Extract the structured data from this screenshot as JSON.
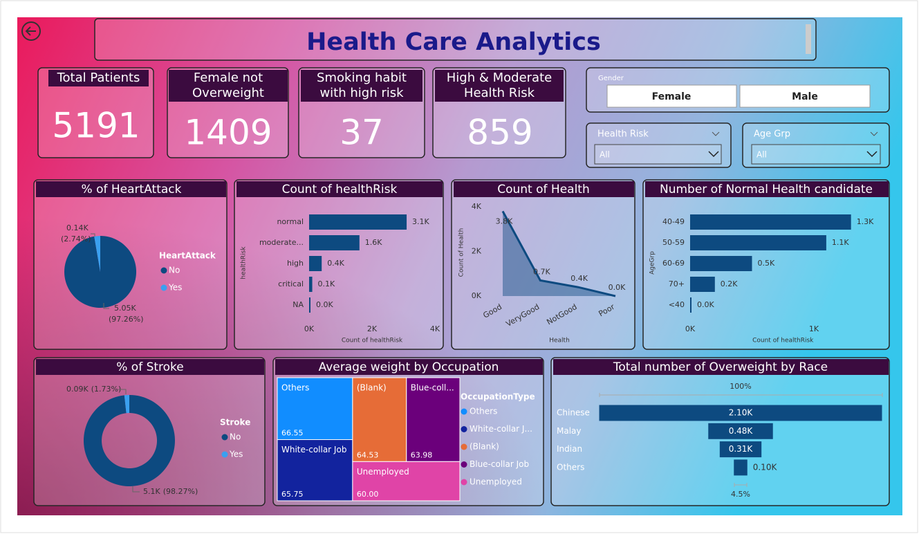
{
  "header": {
    "title": "Health Care Analytics"
  },
  "kpis": [
    {
      "label": "Total Patients",
      "value": 5191
    },
    {
      "label": "Female not Overweight",
      "value": 1409
    },
    {
      "label": "Smoking habit with high risk",
      "value": 37
    },
    {
      "label": "High & Moderate Health Risk",
      "value": 859
    }
  ],
  "slicers": {
    "gender": {
      "title": "Gender",
      "options": [
        "Female",
        "Male"
      ]
    },
    "health_risk": {
      "title": "Health Risk",
      "value": "All"
    },
    "age_grp": {
      "title": "Age Grp",
      "value": "All"
    }
  },
  "chart_data": [
    {
      "type": "pie",
      "title": "% of HeartAttack",
      "legend_title": "HeartAttack",
      "categories": [
        "No",
        "Yes"
      ],
      "values": [
        5050,
        140
      ],
      "value_labels": [
        "5.05K",
        "0.14K"
      ],
      "share_labels": [
        "(97.26%)",
        "(2.74%)"
      ],
      "colors": [
        "#0d4a80",
        "#3aa0f0"
      ]
    },
    {
      "type": "bar",
      "orientation": "horizontal",
      "title": "Count of healthRisk",
      "categories": [
        "normal",
        "moderate...",
        "high",
        "critical",
        "NA"
      ],
      "values": [
        3100,
        1600,
        400,
        100,
        0
      ],
      "value_labels": [
        "3.1K",
        "1.6K",
        "0.4K",
        "0.1K",
        "0.0K"
      ],
      "xlim": [
        0,
        4000
      ],
      "xticks": [
        {
          "value": 0,
          "label": "0K"
        },
        {
          "value": 2000,
          "label": "2K"
        },
        {
          "value": 4000,
          "label": "4K"
        }
      ],
      "x_label": "Count of healthRisk",
      "y_label": "healthRisk",
      "color": "#0d4a80"
    },
    {
      "type": "area",
      "title": "Count of Health",
      "categories": [
        "Good",
        "VeryGood",
        "NotGood",
        "Poor"
      ],
      "values": [
        3800,
        700,
        400,
        0
      ],
      "value_labels": [
        "3.8K",
        "0.7K",
        "0.4K",
        "0.0K"
      ],
      "ylim": [
        0,
        4000
      ],
      "yticks": [
        {
          "value": 0,
          "label": "0K"
        },
        {
          "value": 2000,
          "label": "2K"
        },
        {
          "value": 4000,
          "label": "4K"
        }
      ],
      "x_label": "Health",
      "y_label": "Count of Health",
      "color": "#0d4a80"
    },
    {
      "type": "bar",
      "orientation": "horizontal",
      "title": "Number of Normal Health candidate",
      "categories": [
        "40-49",
        "50-59",
        "60-69",
        "70+",
        "<40"
      ],
      "values": [
        1300,
        1100,
        500,
        200,
        0
      ],
      "value_labels": [
        "1.3K",
        "1.1K",
        "0.5K",
        "0.2K",
        "0.0K"
      ],
      "xlim": [
        0,
        1500
      ],
      "xticks": [
        {
          "value": 0,
          "label": "0K"
        },
        {
          "value": 1000,
          "label": "1K"
        }
      ],
      "x_label": "Count of healthRisk",
      "y_label": "AgeGrp",
      "color": "#0d4a80"
    },
    {
      "type": "donut",
      "title": "% of Stroke",
      "legend_title": "Stroke",
      "categories": [
        "No",
        "Yes"
      ],
      "values": [
        5100,
        90
      ],
      "value_labels": [
        "5.1K",
        "0.09K"
      ],
      "share_labels": [
        "(98.27%)",
        "(1.73%)"
      ],
      "colors": [
        "#0d4a80",
        "#3aa0f0"
      ]
    },
    {
      "type": "treemap",
      "title": "Average weight by Occupation",
      "legend_title": "OccupationType",
      "categories": [
        "Others",
        "White-collar Job",
        "(Blank)",
        "Blue-coll...",
        "Unemployed"
      ],
      "legend_labels": [
        "Others",
        "White-collar J...",
        "(Blank)",
        "Blue-collar Job",
        "Unemployed"
      ],
      "values": [
        66.55,
        65.75,
        64.53,
        63.98,
        60.0
      ],
      "value_labels": [
        "66.55",
        "65.75",
        "64.53",
        "63.98",
        "60.00"
      ],
      "colors": [
        "#118dff",
        "#12239e",
        "#e66c37",
        "#6b007b",
        "#e044a7"
      ]
    },
    {
      "type": "funnel",
      "title": "Total number of Overweight by Race",
      "categories": [
        "Chinese",
        "Malay",
        "Indian",
        "Others"
      ],
      "values": [
        2100,
        480,
        310,
        100
      ],
      "value_labels": [
        "2.10K",
        "0.48K",
        "0.31K",
        "0.10K"
      ],
      "top_label": "100%",
      "bottom_label": "4.5%",
      "color": "#0d4a80"
    }
  ]
}
